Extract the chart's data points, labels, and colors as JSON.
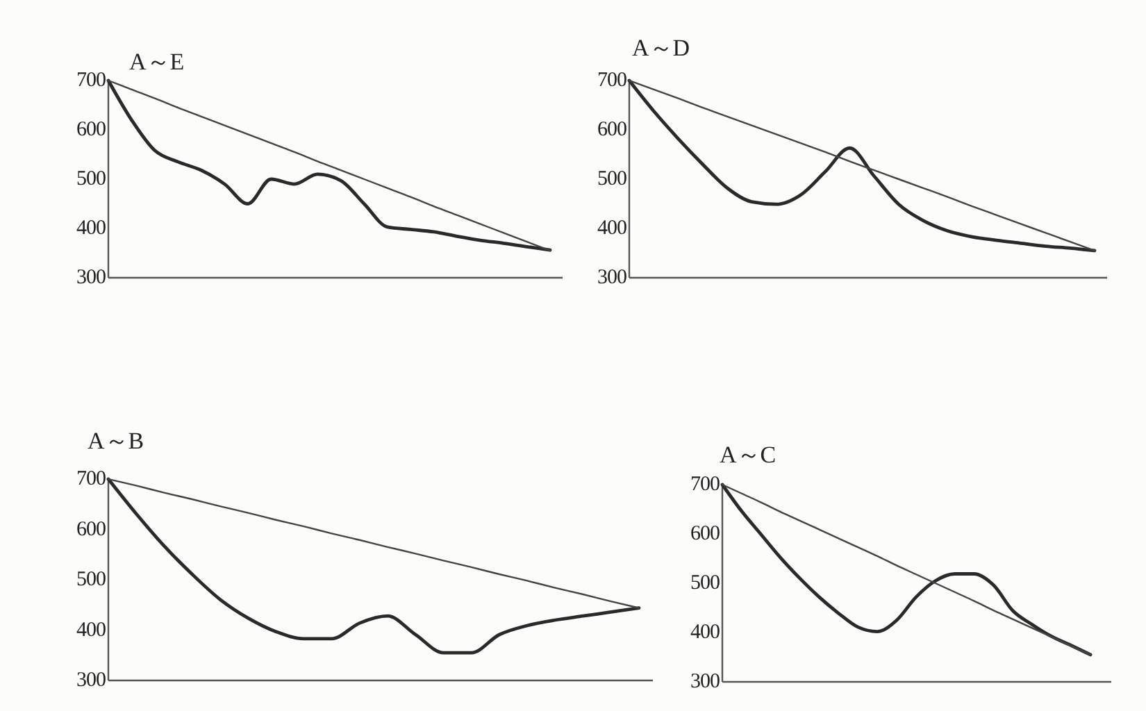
{
  "chart_data": [
    {
      "type": "line",
      "title": "A～E",
      "categories": [
        null,
        null,
        null,
        null,
        null,
        null,
        null,
        null,
        null,
        null,
        null,
        null,
        null,
        null,
        null,
        null,
        null,
        null,
        null,
        null
      ],
      "ylim": [
        300,
        700
      ],
      "yticks": [
        300,
        400,
        500,
        600,
        700
      ],
      "tick_labels": "y",
      "series": [
        {
          "color": "#2a2a2a",
          "values": [
            700,
            620,
            558,
            535,
            518,
            490,
            450,
            500,
            490,
            510,
            497,
            450,
            403,
            398,
            393,
            384,
            376,
            370,
            363,
            356
          ]
        },
        {
          "color": "#444444",
          "values": [
            700,
            682,
            664,
            645,
            627,
            609,
            591,
            573,
            555,
            536,
            518,
            500,
            482,
            464,
            445,
            427,
            409,
            391,
            373,
            355
          ]
        }
      ]
    },
    {
      "type": "line",
      "title": "A～D",
      "categories": [
        null,
        null,
        null,
        null,
        null,
        null,
        null,
        null,
        null,
        null,
        null,
        null,
        null,
        null,
        null,
        null,
        null,
        null,
        null,
        null
      ],
      "ylim": [
        300,
        700
      ],
      "yticks": [
        300,
        400,
        500,
        600,
        700
      ],
      "tick_labels": "y",
      "series": [
        {
          "color": "#2a2a2a",
          "values": [
            700,
            638,
            582,
            530,
            482,
            454,
            449,
            468,
            515,
            563,
            506,
            449,
            416,
            395,
            383,
            376,
            370,
            364,
            360,
            355
          ]
        },
        {
          "color": "#444444",
          "values": [
            700,
            682,
            664,
            645,
            627,
            609,
            591,
            573,
            555,
            536,
            518,
            500,
            482,
            464,
            445,
            427,
            409,
            391,
            373,
            355
          ]
        }
      ]
    },
    {
      "type": "line",
      "title": "A～B",
      "categories": [
        null,
        null,
        null,
        null,
        null,
        null,
        null,
        null,
        null,
        null,
        null,
        null,
        null,
        null,
        null,
        null,
        null,
        null,
        null,
        null
      ],
      "ylim": [
        300,
        700
      ],
      "yticks": [
        300,
        400,
        500,
        600,
        700
      ],
      "tick_labels": "y",
      "series": [
        {
          "color": "#2a2a2a",
          "values": [
            700,
            631,
            567,
            511,
            461,
            424,
            397,
            383,
            383,
            414,
            428,
            391,
            355,
            355,
            391,
            409,
            420,
            428,
            436,
            444
          ]
        },
        {
          "color": "#444444",
          "values": [
            700,
            687,
            673,
            660,
            646,
            633,
            619,
            606,
            592,
            579,
            565,
            552,
            538,
            525,
            511,
            498,
            484,
            471,
            457,
            444
          ]
        }
      ]
    },
    {
      "type": "line",
      "title": "A～C",
      "categories": [
        null,
        null,
        null,
        null,
        null,
        null,
        null,
        null,
        null,
        null,
        null,
        null,
        null,
        null,
        null,
        null,
        null,
        null,
        null,
        null
      ],
      "ylim": [
        300,
        700
      ],
      "yticks": [
        300,
        400,
        500,
        600,
        700
      ],
      "tick_labels": "y",
      "series": [
        {
          "color": "#2a2a2a",
          "values": [
            700,
            646,
            599,
            552,
            510,
            472,
            439,
            411,
            402,
            425,
            472,
            505,
            519,
            519,
            496,
            444,
            416,
            392,
            374,
            355
          ]
        },
        {
          "color": "#444444",
          "values": [
            700,
            682,
            664,
            645,
            627,
            609,
            591,
            573,
            555,
            536,
            518,
            500,
            482,
            464,
            445,
            427,
            409,
            391,
            373,
            355
          ]
        }
      ]
    }
  ]
}
